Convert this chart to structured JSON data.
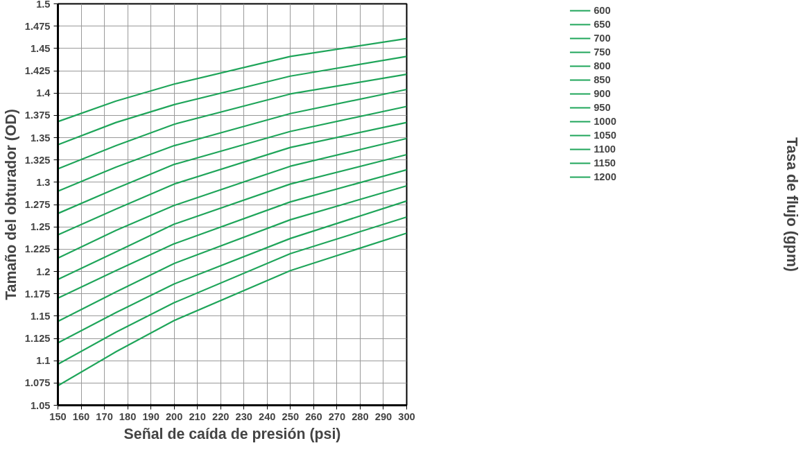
{
  "chart_data": {
    "type": "line",
    "xlabel": "Señal de caída de presión (psi)",
    "ylabel": "Tamaño del obturador (OD)",
    "legend_title": "Tasa de flujo (gpm)",
    "x": [
      150,
      175,
      200,
      250,
      300
    ],
    "series": [
      {
        "name": "600",
        "color": "#1fa55a",
        "values": [
          1.368,
          1.391,
          1.41,
          1.441,
          1.461
        ]
      },
      {
        "name": "650",
        "color": "#1fa55a",
        "values": [
          1.342,
          1.367,
          1.387,
          1.419,
          1.441
        ]
      },
      {
        "name": "700",
        "color": "#1fa55a",
        "values": [
          1.315,
          1.341,
          1.365,
          1.399,
          1.421
        ]
      },
      {
        "name": "750",
        "color": "#1fa55a",
        "values": [
          1.29,
          1.317,
          1.341,
          1.377,
          1.404
        ]
      },
      {
        "name": "800",
        "color": "#1fa55a",
        "values": [
          1.265,
          1.293,
          1.32,
          1.357,
          1.385
        ]
      },
      {
        "name": "850",
        "color": "#1fa55a",
        "values": [
          1.241,
          1.27,
          1.298,
          1.339,
          1.367
        ]
      },
      {
        "name": "900",
        "color": "#1fa55a",
        "values": [
          1.215,
          1.246,
          1.274,
          1.318,
          1.349
        ]
      },
      {
        "name": "950",
        "color": "#1fa55a",
        "values": [
          1.191,
          1.222,
          1.253,
          1.298,
          1.331
        ]
      },
      {
        "name": "1000",
        "color": "#1fa55a",
        "values": [
          1.17,
          1.201,
          1.231,
          1.278,
          1.314
        ]
      },
      {
        "name": "1050",
        "color": "#1fa55a",
        "values": [
          1.144,
          1.177,
          1.209,
          1.258,
          1.296
        ]
      },
      {
        "name": "1100",
        "color": "#1fa55a",
        "values": [
          1.12,
          1.154,
          1.186,
          1.237,
          1.279
        ]
      },
      {
        "name": "1150",
        "color": "#1fa55a",
        "values": [
          1.096,
          1.132,
          1.165,
          1.22,
          1.261
        ]
      },
      {
        "name": "1200",
        "color": "#1fa55a",
        "values": [
          1.072,
          1.11,
          1.145,
          1.201,
          1.243
        ]
      }
    ],
    "xlim": [
      150,
      300
    ],
    "ylim": [
      1.05,
      1.5
    ],
    "xticks": [
      150,
      160,
      170,
      180,
      190,
      200,
      210,
      220,
      230,
      240,
      250,
      260,
      270,
      280,
      290,
      300
    ],
    "yticks": [
      1.05,
      1.075,
      1.1,
      1.125,
      1.15,
      1.175,
      1.2,
      1.225,
      1.25,
      1.275,
      1.3,
      1.325,
      1.35,
      1.375,
      1.4,
      1.425,
      1.45,
      1.475,
      1.5
    ],
    "grid": true,
    "legend": "right",
    "marker": "none",
    "line_style": "solid"
  }
}
